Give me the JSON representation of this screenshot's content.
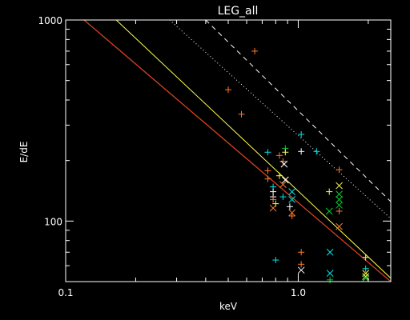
{
  "chart_data": {
    "type": "scatter",
    "title": "LEG_all",
    "xlabel": "keV",
    "ylabel": "E/dE",
    "xscale": "log",
    "yscale": "log",
    "xlim": [
      0.1,
      2.5
    ],
    "ylim": [
      50,
      1000
    ],
    "x_ticks": [
      {
        "v": 0.1,
        "label": "0.1"
      },
      {
        "v": 1.0,
        "label": "1.0"
      }
    ],
    "y_ticks": [
      {
        "v": 100,
        "label": "100"
      },
      {
        "v": 1000,
        "label": "1000"
      }
    ],
    "colors": {
      "background": "#000000",
      "axes": "#ffffff",
      "orange": "#ff7a2a",
      "cyan": "#00e5e5",
      "yellow": "#ffff4d",
      "green": "#00cc33",
      "red": "#ff2020",
      "white": "#ffffff"
    },
    "lines": [
      {
        "color": "white",
        "dash": "dashed",
        "x": [
          0.4,
          2.5
        ],
        "y": [
          1000,
          125
        ]
      },
      {
        "color": "white",
        "dash": "dotted",
        "x": [
          0.28,
          2.5
        ],
        "y": [
          1000,
          103
        ]
      },
      {
        "color": "yellow",
        "dash": "solid",
        "x": [
          0.165,
          2.5
        ],
        "y": [
          1000,
          52
        ]
      },
      {
        "color": "yellow",
        "dash": "solid",
        "x": [
          0.12,
          2.5
        ],
        "y": [
          1000,
          50
        ]
      },
      {
        "color": "green",
        "dash": "solid",
        "x": [
          0.12,
          2.5
        ],
        "y": [
          1000,
          50
        ]
      },
      {
        "color": "red",
        "dash": "solid",
        "x": [
          0.12,
          2.5
        ],
        "y": [
          1000,
          50
        ]
      }
    ],
    "points": [
      {
        "x": 0.65,
        "y": 700,
        "m": "+",
        "color": "orange"
      },
      {
        "x": 0.5,
        "y": 450,
        "m": "+",
        "color": "orange"
      },
      {
        "x": 0.57,
        "y": 340,
        "m": "+",
        "color": "orange"
      },
      {
        "x": 1.03,
        "y": 270,
        "m": "+",
        "color": "cyan"
      },
      {
        "x": 0.88,
        "y": 230,
        "m": "+",
        "color": "green"
      },
      {
        "x": 0.88,
        "y": 220,
        "m": "+",
        "color": "yellow"
      },
      {
        "x": 0.74,
        "y": 220,
        "m": "+",
        "color": "cyan"
      },
      {
        "x": 1.03,
        "y": 222,
        "m": "+",
        "color": "white"
      },
      {
        "x": 1.2,
        "y": 222,
        "m": "+",
        "color": "cyan"
      },
      {
        "x": 0.83,
        "y": 212,
        "m": "+",
        "color": "orange"
      },
      {
        "x": 0.86,
        "y": 198,
        "m": "+",
        "color": "orange"
      },
      {
        "x": 0.87,
        "y": 192,
        "m": "x",
        "color": "white"
      },
      {
        "x": 1.5,
        "y": 180,
        "m": "+",
        "color": "orange"
      },
      {
        "x": 0.74,
        "y": 178,
        "m": "+",
        "color": "orange"
      },
      {
        "x": 0.83,
        "y": 168,
        "m": "+",
        "color": "yellow"
      },
      {
        "x": 0.74,
        "y": 162,
        "m": "+",
        "color": "orange"
      },
      {
        "x": 0.88,
        "y": 160,
        "m": "x",
        "color": "white"
      },
      {
        "x": 0.86,
        "y": 152,
        "m": "x",
        "color": "orange"
      },
      {
        "x": 0.78,
        "y": 148,
        "m": "+",
        "color": "cyan"
      },
      {
        "x": 0.78,
        "y": 140,
        "m": "+",
        "color": "white"
      },
      {
        "x": 0.78,
        "y": 132,
        "m": "+",
        "color": "white"
      },
      {
        "x": 1.5,
        "y": 150,
        "m": "x",
        "color": "yellow"
      },
      {
        "x": 1.36,
        "y": 140,
        "m": "+",
        "color": "yellow"
      },
      {
        "x": 0.94,
        "y": 140,
        "m": "x",
        "color": "cyan"
      },
      {
        "x": 1.5,
        "y": 136,
        "m": "x",
        "color": "green"
      },
      {
        "x": 0.86,
        "y": 132,
        "m": "+",
        "color": "cyan"
      },
      {
        "x": 0.78,
        "y": 128,
        "m": "+",
        "color": "orange"
      },
      {
        "x": 0.94,
        "y": 128,
        "m": "x",
        "color": "cyan"
      },
      {
        "x": 1.5,
        "y": 128,
        "m": "x",
        "color": "green"
      },
      {
        "x": 0.8,
        "y": 122,
        "m": "+",
        "color": "yellow"
      },
      {
        "x": 0.78,
        "y": 116,
        "m": "x",
        "color": "orange"
      },
      {
        "x": 0.92,
        "y": 118,
        "m": "+",
        "color": "white"
      },
      {
        "x": 1.5,
        "y": 120,
        "m": "x",
        "color": "green"
      },
      {
        "x": 1.36,
        "y": 112,
        "m": "x",
        "color": "green"
      },
      {
        "x": 0.94,
        "y": 110,
        "m": "x",
        "color": "orange"
      },
      {
        "x": 0.94,
        "y": 106,
        "m": "+",
        "color": "orange"
      },
      {
        "x": 1.5,
        "y": 112,
        "m": "+",
        "color": "orange"
      },
      {
        "x": 1.5,
        "y": 94,
        "m": "x",
        "color": "orange"
      },
      {
        "x": 1.03,
        "y": 70,
        "m": "+",
        "color": "orange"
      },
      {
        "x": 1.37,
        "y": 70,
        "m": "x",
        "color": "cyan"
      },
      {
        "x": 0.8,
        "y": 64,
        "m": "+",
        "color": "cyan"
      },
      {
        "x": 1.03,
        "y": 61,
        "m": "+",
        "color": "orange"
      },
      {
        "x": 1.03,
        "y": 57,
        "m": "x",
        "color": "white"
      },
      {
        "x": 1.95,
        "y": 66,
        "m": "+",
        "color": "yellow"
      },
      {
        "x": 1.95,
        "y": 58,
        "m": "+",
        "color": "cyan"
      },
      {
        "x": 1.95,
        "y": 55,
        "m": "x",
        "color": "yellow"
      },
      {
        "x": 1.95,
        "y": 53,
        "m": "x",
        "color": "yellow"
      },
      {
        "x": 1.95,
        "y": 52,
        "m": "x",
        "color": "green"
      },
      {
        "x": 1.37,
        "y": 55,
        "m": "x",
        "color": "cyan"
      },
      {
        "x": 1.37,
        "y": 51,
        "m": "+",
        "color": "green"
      }
    ]
  }
}
